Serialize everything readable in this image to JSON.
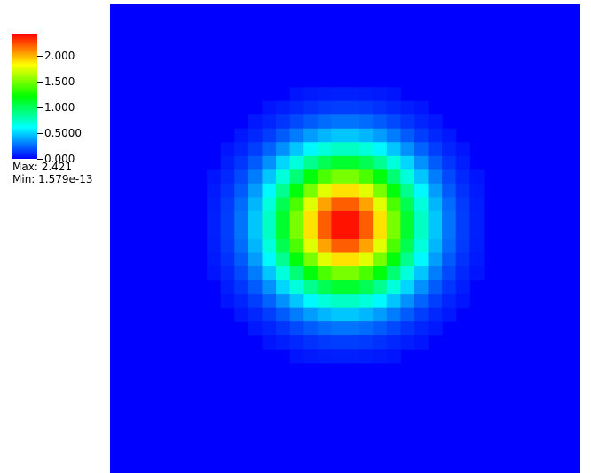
{
  "chart_data": {
    "type": "heatmap",
    "title": "",
    "colormap": [
      "#0000ff",
      "#00ffff",
      "#00ff00",
      "#ffff00",
      "#ff0000"
    ],
    "range": [
      0,
      2.421
    ],
    "ticks": [
      {
        "value": 2.0,
        "label": "2.000"
      },
      {
        "value": 1.5,
        "label": "1.500"
      },
      {
        "value": 1.0,
        "label": "1.000"
      },
      {
        "value": 0.5,
        "label": "0.5000"
      },
      {
        "value": 0.0,
        "label": "0.000"
      }
    ],
    "max_label": "Max:",
    "max_value": "2.421",
    "min_label": "Min:",
    "min_value": "1.579e-13",
    "grid_cols": 34,
    "grid_rows": 34,
    "peak_col": 17,
    "peak_row": 16,
    "peak_value": 2.421,
    "spread_cells": 3.6
  }
}
